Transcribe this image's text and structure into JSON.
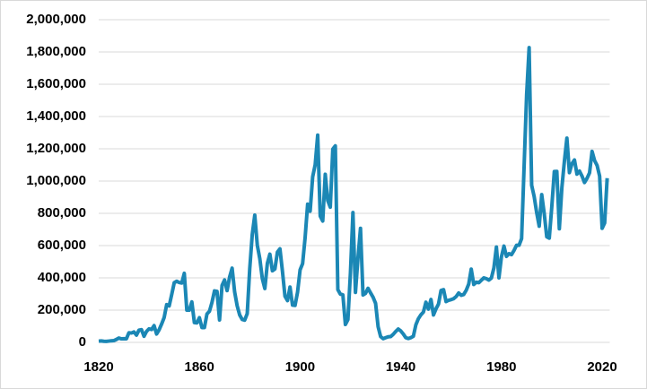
{
  "chart_data": {
    "type": "line",
    "x": [
      1820,
      1821,
      1822,
      1823,
      1824,
      1825,
      1826,
      1827,
      1828,
      1829,
      1830,
      1831,
      1832,
      1833,
      1834,
      1835,
      1836,
      1837,
      1838,
      1839,
      1840,
      1841,
      1842,
      1843,
      1844,
      1845,
      1846,
      1847,
      1848,
      1849,
      1850,
      1851,
      1852,
      1853,
      1854,
      1855,
      1856,
      1857,
      1858,
      1859,
      1860,
      1861,
      1862,
      1863,
      1864,
      1865,
      1866,
      1867,
      1868,
      1869,
      1870,
      1871,
      1872,
      1873,
      1874,
      1875,
      1876,
      1877,
      1878,
      1879,
      1880,
      1881,
      1882,
      1883,
      1884,
      1885,
      1886,
      1887,
      1888,
      1889,
      1890,
      1891,
      1892,
      1893,
      1894,
      1895,
      1896,
      1897,
      1898,
      1899,
      1900,
      1901,
      1902,
      1903,
      1904,
      1905,
      1906,
      1907,
      1908,
      1909,
      1910,
      1911,
      1912,
      1913,
      1914,
      1915,
      1916,
      1917,
      1918,
      1919,
      1920,
      1921,
      1922,
      1923,
      1924,
      1925,
      1926,
      1927,
      1928,
      1929,
      1930,
      1931,
      1932,
      1933,
      1934,
      1935,
      1936,
      1937,
      1938,
      1939,
      1940,
      1941,
      1942,
      1943,
      1944,
      1945,
      1946,
      1947,
      1948,
      1949,
      1950,
      1951,
      1952,
      1953,
      1954,
      1955,
      1956,
      1957,
      1958,
      1959,
      1960,
      1961,
      1962,
      1963,
      1964,
      1965,
      1966,
      1967,
      1968,
      1969,
      1970,
      1971,
      1972,
      1973,
      1974,
      1975,
      1976,
      1977,
      1978,
      1979,
      1980,
      1981,
      1982,
      1983,
      1984,
      1985,
      1986,
      1987,
      1988,
      1989,
      1990,
      1991,
      1992,
      1993,
      1994,
      1995,
      1996,
      1997,
      1998,
      1999,
      2000,
      2001,
      2002,
      2003,
      2004,
      2005,
      2006,
      2007,
      2008,
      2009,
      2010,
      2011,
      2012,
      2013,
      2014,
      2015,
      2016,
      2017,
      2018,
      2019,
      2020,
      2021,
      2022
    ],
    "series": [
      {
        "color": "#1b87b5",
        "values": [
          8000,
          9000,
          7000,
          6000,
          8000,
          10000,
          11000,
          18000,
          27000,
          22000,
          23000,
          22000,
          60000,
          58000,
          65000,
          45000,
          76000,
          79000,
          38000,
          68000,
          84000,
          80000,
          104000,
          52000,
          78000,
          114000,
          154000,
          234000,
          226000,
          297000,
          370000,
          379000,
          371000,
          368000,
          428000,
          200000,
          200000,
          251000,
          123000,
          121000,
          153000,
          92000,
          92000,
          176000,
          193000,
          248000,
          319000,
          316000,
          139000,
          353000,
          387000,
          321000,
          405000,
          460000,
          313000,
          227000,
          170000,
          142000,
          138000,
          178000,
          457000,
          669000,
          789000,
          603000,
          519000,
          395000,
          334000,
          490000,
          547000,
          444000,
          455000,
          560000,
          580000,
          440000,
          286000,
          259000,
          343000,
          231000,
          229000,
          312000,
          449000,
          488000,
          649000,
          857000,
          813000,
          1026000,
          1101000,
          1285000,
          783000,
          752000,
          1042000,
          879000,
          838000,
          1198000,
          1218000,
          327000,
          299000,
          295000,
          111000,
          141000,
          430000,
          805000,
          310000,
          523000,
          707000,
          294000,
          304000,
          335000,
          307000,
          280000,
          242000,
          97000,
          36000,
          23000,
          29000,
          35000,
          36000,
          50000,
          68000,
          83000,
          71000,
          52000,
          29000,
          24000,
          29000,
          38000,
          109000,
          147000,
          171000,
          188000,
          249000,
          206000,
          266000,
          170000,
          208000,
          238000,
          322000,
          327000,
          253000,
          261000,
          265000,
          271000,
          284000,
          306000,
          292000,
          297000,
          323000,
          362000,
          454000,
          359000,
          373000,
          370000,
          385000,
          400000,
          395000,
          386000,
          399000,
          462000,
          591000,
          400000,
          531000,
          597000,
          533000,
          550000,
          544000,
          570000,
          602000,
          602000,
          643000,
          1091000,
          1536000,
          1827000,
          974000,
          904000,
          804000,
          720000,
          916000,
          798000,
          654000,
          646000,
          841000,
          1059000,
          1060000,
          704000,
          958000,
          1122000,
          1266000,
          1052000,
          1107000,
          1131000,
          1043000,
          1062000,
          1031000,
          991000,
          1017000,
          1051000,
          1184000,
          1127000,
          1097000,
          1031000,
          707000,
          740000,
          1018000
        ]
      }
    ],
    "xlim": [
      1820,
      2023
    ],
    "xticks": [
      1820,
      1860,
      1900,
      1940,
      1980,
      2020
    ],
    "ylim": [
      0,
      2000000
    ],
    "yticks": [
      0,
      {
        "value": 200000,
        "label": "200,000"
      },
      {
        "value": 400000,
        "label": "400,000"
      },
      {
        "value": 600000,
        "label": "600,000"
      },
      {
        "value": 800000,
        "label": "800,000"
      },
      {
        "value": 1000000,
        "label": "1,000,000"
      },
      {
        "value": 1200000,
        "label": "1,200,000"
      },
      {
        "value": 1400000,
        "label": "1,400,000"
      },
      {
        "value": 1600000,
        "label": "1,600,000"
      },
      {
        "value": 1800000,
        "label": "1,800,000"
      },
      {
        "value": 2000000,
        "label": "2,000,000"
      }
    ],
    "grid": true
  }
}
